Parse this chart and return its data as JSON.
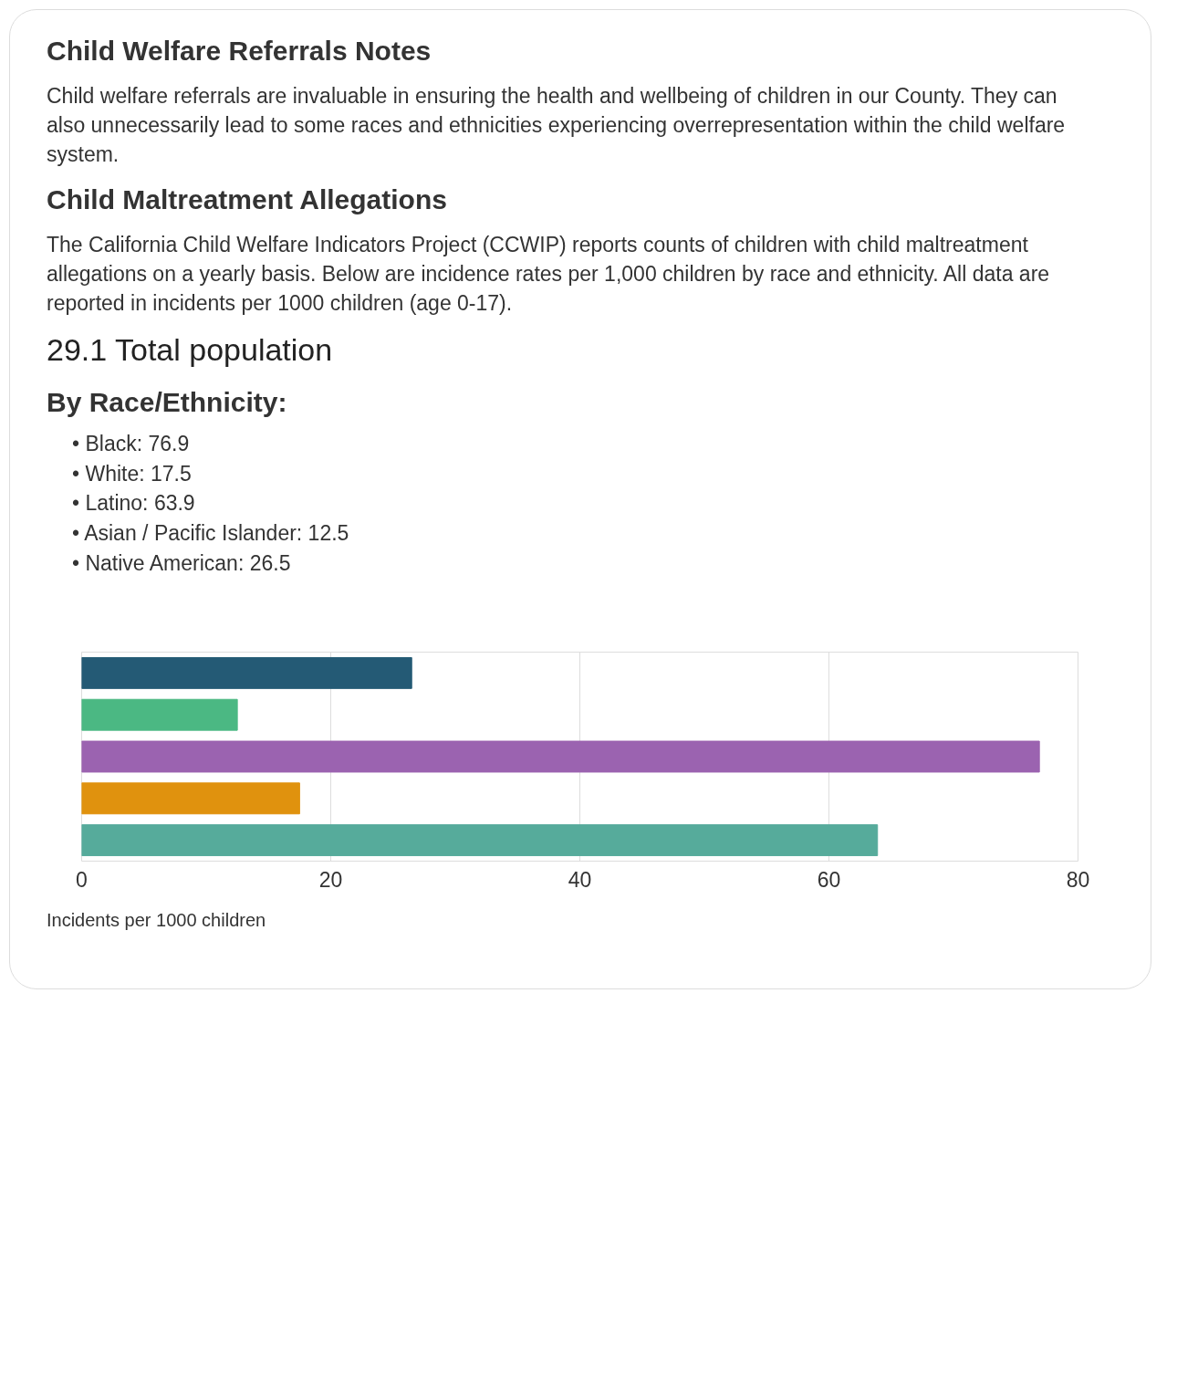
{
  "chart_data": {
    "type": "bar",
    "orientation": "horizontal",
    "title": "Child Welfare Referrals Notes",
    "subtitle": "Child welfare referrals are invaluable in ensuring the health and wellbeing of children in our County. They can also unnecessarily lead to some races and ethnicities experiencing overrepresentation within the child welfare system.",
    "annotations": [
      "Child Maltreatment Allegations",
      "The California Child Welfare Indicators Project (CCWIP) reports counts of children with child maltreatment allegations on a yearly basis. Below are incidence rates per 1,000 children by race and ethnicity. All data are reported in incidents per 1000 children (age 0-17).",
      "29.1 Total population",
      "By Race/Ethnicity:",
      "• Black: 76.9",
      "• White: 17.5",
      "• Latino: 63.9",
      "• Asian / Pacific Islander: 12.5",
      "• Native American: 26.5"
    ],
    "categories": [
      null,
      null,
      null,
      null,
      null
    ],
    "values": [
      26.5,
      12.5,
      76.9,
      17.5,
      63.9
    ],
    "colors": [
      "#245a75",
      "#4bb883",
      "#9b63b0",
      "#e0920e",
      "#56ab9b"
    ],
    "xlabel": "Incidents per 1000 children",
    "xlim": [
      0,
      80
    ],
    "xticks": [
      0,
      20,
      40,
      60,
      80
    ],
    "grid": "x",
    "tick_labels": "x"
  }
}
